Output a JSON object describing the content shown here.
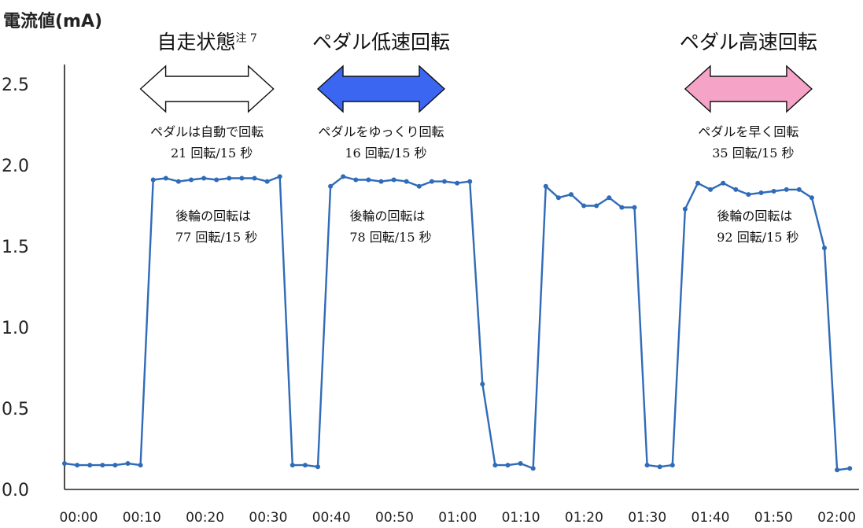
{
  "chart_data": {
    "type": "line",
    "title": "",
    "ylabel": "電流値(mA)",
    "xlabel": "",
    "ylim": [
      0.0,
      2.5
    ],
    "yticks": [
      "0.0",
      "0.5",
      "1.0",
      "1.5",
      "2.0",
      "2.5"
    ],
    "xticks": [
      "00:00",
      "00:10",
      "00:20",
      "00:30",
      "00:40",
      "00:50",
      "01:00",
      "01:10",
      "01:20",
      "01:30",
      "01:40",
      "01:50",
      "02:00"
    ],
    "xlim_seconds": [
      0,
      125
    ],
    "grid": false,
    "x_seconds": [
      0,
      2,
      4,
      6,
      8,
      10,
      12,
      14,
      16,
      18,
      20,
      22,
      24,
      26,
      28,
      30,
      32,
      34,
      36,
      38,
      40,
      42,
      44,
      46,
      48,
      50,
      52,
      54,
      56,
      58,
      60,
      62,
      64,
      66,
      68,
      70,
      72,
      74,
      76,
      78,
      80,
      82,
      84,
      86,
      88,
      90,
      92,
      94,
      96,
      98,
      100,
      102,
      104,
      106,
      108,
      110,
      112,
      114,
      116,
      118,
      120,
      122,
      124
    ],
    "values": [
      0.16,
      0.15,
      0.15,
      0.15,
      0.15,
      0.16,
      0.15,
      1.91,
      1.92,
      1.9,
      1.91,
      1.92,
      1.91,
      1.92,
      1.92,
      1.92,
      1.9,
      1.93,
      0.15,
      0.15,
      0.14,
      1.87,
      1.93,
      1.91,
      1.91,
      1.9,
      1.91,
      1.9,
      1.87,
      1.9,
      1.9,
      1.89,
      1.9,
      0.65,
      0.15,
      0.15,
      0.16,
      0.13,
      1.87,
      1.8,
      1.82,
      1.75,
      1.75,
      1.8,
      1.74,
      1.74,
      0.15,
      0.14,
      0.15,
      1.73,
      1.89,
      1.85,
      1.89,
      1.85,
      1.82,
      1.83,
      1.84,
      1.85,
      1.85,
      1.8,
      1.49,
      0.12,
      0.13
    ],
    "phases": [
      {
        "label": "自走状態",
        "sup": "注 7",
        "arrow_color": "#ffffff",
        "note1": "ペダルは自動で回転",
        "note2": "21 回転/15 秒",
        "note3": "後輪の回転は",
        "note4": "77 回転/15 秒",
        "x_from": 12,
        "x_to": 33
      },
      {
        "label": "ペダル低速回転",
        "sup": "",
        "arrow_color": "#3a66f2",
        "note1": "ペダルをゆっくり回転",
        "note2": "16 回転/15 秒",
        "note3": "後輪の回転は",
        "note4": "78 回転/15 秒",
        "x_from": 40,
        "x_to": 60
      },
      {
        "label": "ペダル高速回転",
        "sup": "",
        "arrow_color": "#f5a3c6",
        "note1": "ペダルを早く回転",
        "note2": "35 回転/15 秒",
        "note3": "後輪の回転は",
        "note4": "92 回転/15 秒",
        "x_from": 98,
        "x_to": 118
      }
    ],
    "series_color": "#2f6bb8"
  }
}
